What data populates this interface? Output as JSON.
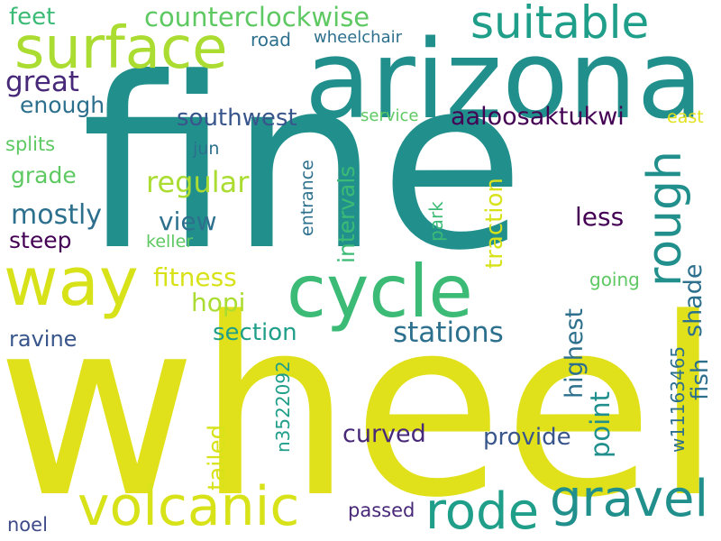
{
  "wordcloud": {
    "palette": {
      "teal": "#21908d",
      "yellow": "#e1e11b",
      "lime": "#aadc32",
      "green": "#3bbb75",
      "navy": "#39568c",
      "purple": "#440154",
      "slate": "#2d708e",
      "bluegreen": "#1f9e89",
      "blue": "#3e4a89",
      "lightgreen": "#5ec962",
      "violet": "#482878",
      "gold": "#d8e219"
    },
    "words": [
      {
        "text": "wheel",
        "color": "#e1e11b"
      },
      {
        "text": "fine",
        "color": "#21908d"
      },
      {
        "text": "arizona",
        "color": "#21908d"
      },
      {
        "text": "surface",
        "color": "#aadc32"
      },
      {
        "text": "way",
        "color": "#d8e219"
      },
      {
        "text": "cycle",
        "color": "#3bbb75"
      },
      {
        "text": "suitable",
        "color": "#1f9e89"
      },
      {
        "text": "volcanic",
        "color": "#d8e219"
      },
      {
        "text": "rode",
        "color": "#1f9e89"
      },
      {
        "text": "gravel",
        "color": "#21908d"
      },
      {
        "text": "rough",
        "color": "#21908d"
      },
      {
        "text": "counterclockwise",
        "color": "#5ec962"
      },
      {
        "text": "feet",
        "color": "#3bbb75"
      },
      {
        "text": "road",
        "color": "#2d708e"
      },
      {
        "text": "wheelchair",
        "color": "#2d708e"
      },
      {
        "text": "great",
        "color": "#482878"
      },
      {
        "text": "enough",
        "color": "#2d708e"
      },
      {
        "text": "southwest",
        "color": "#39568c"
      },
      {
        "text": "service",
        "color": "#5ec962"
      },
      {
        "text": "aaloosaktukwi",
        "color": "#440154"
      },
      {
        "text": "east",
        "color": "#e1e11b"
      },
      {
        "text": "splits",
        "color": "#5ec962"
      },
      {
        "text": "jun",
        "color": "#2d708e"
      },
      {
        "text": "grade",
        "color": "#5ec962"
      },
      {
        "text": "regular",
        "color": "#aadc32"
      },
      {
        "text": "mostly",
        "color": "#2d708e"
      },
      {
        "text": "view",
        "color": "#2d708e"
      },
      {
        "text": "steep",
        "color": "#440154"
      },
      {
        "text": "keller",
        "color": "#5ec962"
      },
      {
        "text": "less",
        "color": "#440154"
      },
      {
        "text": "fitness",
        "color": "#d8e219"
      },
      {
        "text": "hopi",
        "color": "#aadc32"
      },
      {
        "text": "going",
        "color": "#5ec962"
      },
      {
        "text": "section",
        "color": "#1f9e89"
      },
      {
        "text": "stations",
        "color": "#2d708e"
      },
      {
        "text": "ravine",
        "color": "#39568c"
      },
      {
        "text": "curved",
        "color": "#482878"
      },
      {
        "text": "provide",
        "color": "#39568c"
      },
      {
        "text": "passed",
        "color": "#482878"
      },
      {
        "text": "noel",
        "color": "#3e4a89"
      },
      {
        "text": "entrance",
        "color": "#2d708e"
      },
      {
        "text": "intervals",
        "color": "#3bbb75"
      },
      {
        "text": "traction",
        "color": "#d8e219"
      },
      {
        "text": "park",
        "color": "#3bbb75"
      },
      {
        "text": "highest",
        "color": "#2d708e"
      },
      {
        "text": "point",
        "color": "#21908d"
      },
      {
        "text": "shade",
        "color": "#2d708e"
      },
      {
        "text": "fish",
        "color": "#2d708e"
      },
      {
        "text": "w11163465",
        "color": "#2d708e"
      },
      {
        "text": "n3522092",
        "color": "#1f9e89"
      },
      {
        "text": "tailed",
        "color": "#d8e219"
      }
    ]
  }
}
